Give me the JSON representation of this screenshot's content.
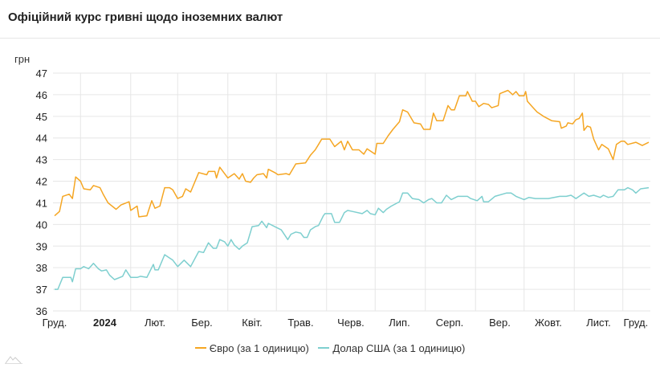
{
  "header": {
    "title": "Офіційний курс гривні щодо іноземних валют"
  },
  "chart_data": {
    "type": "line",
    "title": "Офіційний курс гривні щодо іноземних валют",
    "ylabel": "грн",
    "xlabel": "",
    "x_units": "days since 2023-12-01",
    "xlim": [
      14,
      383
    ],
    "ylim": [
      36,
      47
    ],
    "yticks": [
      36,
      37,
      38,
      39,
      40,
      41,
      42,
      43,
      44,
      45,
      46,
      47
    ],
    "grid": true,
    "legend": "bottom",
    "month_gridlines": [
      31,
      62,
      91,
      122,
      152,
      183,
      213,
      244,
      275,
      305,
      336,
      366
    ],
    "xtick_labels": [
      {
        "d": 15,
        "label": "Груд."
      },
      {
        "d": 46,
        "label": "2024",
        "bold": true
      },
      {
        "d": 77,
        "label": "Лют."
      },
      {
        "d": 106,
        "label": "Бер."
      },
      {
        "d": 137,
        "label": "Квіт."
      },
      {
        "d": 167,
        "label": "Трав."
      },
      {
        "d": 198,
        "label": "Черв."
      },
      {
        "d": 228,
        "label": "Лип."
      },
      {
        "d": 259,
        "label": "Серп."
      },
      {
        "d": 290,
        "label": "Вер."
      },
      {
        "d": 320,
        "label": "Жовт."
      },
      {
        "d": 351,
        "label": "Лист."
      },
      {
        "d": 374,
        "label": "Груд."
      }
    ],
    "series": [
      {
        "name": "Євро (за 1 одиницю)",
        "color": "#f5a623",
        "points": [
          [
            15,
            40.4
          ],
          [
            18,
            40.6
          ],
          [
            20,
            41.3
          ],
          [
            24,
            41.4
          ],
          [
            26,
            41.2
          ],
          [
            28,
            42.2
          ],
          [
            31,
            42.0
          ],
          [
            33,
            41.65
          ],
          [
            37,
            41.6
          ],
          [
            39,
            41.8
          ],
          [
            43,
            41.7
          ],
          [
            45,
            41.4
          ],
          [
            48,
            41.0
          ],
          [
            53,
            40.7
          ],
          [
            56,
            40.9
          ],
          [
            61,
            41.05
          ],
          [
            62,
            40.65
          ],
          [
            66,
            40.85
          ],
          [
            67,
            40.35
          ],
          [
            72,
            40.4
          ],
          [
            75,
            41.1
          ],
          [
            77,
            40.75
          ],
          [
            80,
            40.85
          ],
          [
            83,
            41.7
          ],
          [
            86,
            41.7
          ],
          [
            88,
            41.6
          ],
          [
            91,
            41.2
          ],
          [
            94,
            41.3
          ],
          [
            96,
            41.65
          ],
          [
            99,
            41.5
          ],
          [
            104,
            42.4
          ],
          [
            109,
            42.3
          ],
          [
            110,
            42.45
          ],
          [
            114,
            42.45
          ],
          [
            115,
            42.15
          ],
          [
            117,
            42.65
          ],
          [
            120,
            42.35
          ],
          [
            122,
            42.15
          ],
          [
            126,
            42.35
          ],
          [
            129,
            42.1
          ],
          [
            131,
            42.35
          ],
          [
            133,
            42.0
          ],
          [
            136,
            41.95
          ],
          [
            138,
            42.15
          ],
          [
            140,
            42.3
          ],
          [
            144,
            42.35
          ],
          [
            146,
            42.15
          ],
          [
            147,
            42.55
          ],
          [
            151,
            42.4
          ],
          [
            153,
            42.3
          ],
          [
            158,
            42.35
          ],
          [
            160,
            42.3
          ],
          [
            164,
            42.8
          ],
          [
            170,
            42.85
          ],
          [
            173,
            43.2
          ],
          [
            176,
            43.45
          ],
          [
            178,
            43.7
          ],
          [
            180,
            43.95
          ],
          [
            185,
            43.95
          ],
          [
            188,
            43.6
          ],
          [
            192,
            43.85
          ],
          [
            194,
            43.45
          ],
          [
            196,
            43.85
          ],
          [
            199,
            43.45
          ],
          [
            203,
            43.45
          ],
          [
            206,
            43.25
          ],
          [
            208,
            43.5
          ],
          [
            213,
            43.25
          ],
          [
            214,
            43.75
          ],
          [
            218,
            43.75
          ],
          [
            221,
            44.1
          ],
          [
            224,
            44.4
          ],
          [
            228,
            44.75
          ],
          [
            230,
            45.3
          ],
          [
            233,
            45.2
          ],
          [
            237,
            44.7
          ],
          [
            241,
            44.65
          ],
          [
            243,
            44.4
          ],
          [
            247,
            44.4
          ],
          [
            249,
            45.15
          ],
          [
            251,
            44.8
          ],
          [
            255,
            44.8
          ],
          [
            258,
            45.5
          ],
          [
            260,
            45.3
          ],
          [
            262,
            45.3
          ],
          [
            265,
            45.95
          ],
          [
            269,
            45.95
          ],
          [
            270,
            46.15
          ],
          [
            273,
            45.7
          ],
          [
            275,
            45.7
          ],
          [
            277,
            45.45
          ],
          [
            280,
            45.6
          ],
          [
            283,
            45.55
          ],
          [
            285,
            45.4
          ],
          [
            289,
            45.5
          ],
          [
            290,
            46.05
          ],
          [
            295,
            46.2
          ],
          [
            298,
            46.0
          ],
          [
            300,
            46.15
          ],
          [
            302,
            45.95
          ],
          [
            305,
            45.95
          ],
          [
            306,
            46.15
          ],
          [
            307,
            45.7
          ],
          [
            310,
            45.45
          ],
          [
            313,
            45.2
          ],
          [
            317,
            45.0
          ],
          [
            322,
            44.8
          ],
          [
            327,
            44.75
          ],
          [
            328,
            44.45
          ],
          [
            331,
            44.55
          ],
          [
            332,
            44.7
          ],
          [
            335,
            44.65
          ],
          [
            337,
            44.85
          ],
          [
            339,
            44.9
          ],
          [
            341,
            45.15
          ],
          [
            342,
            44.35
          ],
          [
            344,
            44.55
          ],
          [
            346,
            44.5
          ],
          [
            348,
            43.95
          ],
          [
            351,
            43.45
          ],
          [
            353,
            43.7
          ],
          [
            357,
            43.5
          ],
          [
            360,
            43.0
          ],
          [
            362,
            43.7
          ],
          [
            365,
            43.85
          ],
          [
            367,
            43.85
          ],
          [
            369,
            43.7
          ],
          [
            374,
            43.8
          ],
          [
            378,
            43.65
          ],
          [
            382,
            43.8
          ]
        ]
      },
      {
        "name": "Долар США (за 1 одиницю)",
        "color": "#7ecfcf",
        "points": [
          [
            15,
            37.0
          ],
          [
            17,
            37.0
          ],
          [
            20,
            37.55
          ],
          [
            25,
            37.55
          ],
          [
            26,
            37.35
          ],
          [
            28,
            37.95
          ],
          [
            31,
            37.95
          ],
          [
            33,
            38.05
          ],
          [
            36,
            37.95
          ],
          [
            39,
            38.2
          ],
          [
            42,
            37.95
          ],
          [
            44,
            37.85
          ],
          [
            47,
            37.9
          ],
          [
            49,
            37.65
          ],
          [
            52,
            37.45
          ],
          [
            57,
            37.6
          ],
          [
            59,
            37.9
          ],
          [
            62,
            37.55
          ],
          [
            66,
            37.55
          ],
          [
            68,
            37.6
          ],
          [
            72,
            37.55
          ],
          [
            76,
            38.15
          ],
          [
            77,
            37.9
          ],
          [
            79,
            37.9
          ],
          [
            83,
            38.6
          ],
          [
            86,
            38.45
          ],
          [
            88,
            38.35
          ],
          [
            91,
            38.05
          ],
          [
            95,
            38.35
          ],
          [
            99,
            38.05
          ],
          [
            104,
            38.75
          ],
          [
            107,
            38.7
          ],
          [
            110,
            39.15
          ],
          [
            113,
            38.9
          ],
          [
            115,
            38.9
          ],
          [
            117,
            39.3
          ],
          [
            120,
            39.2
          ],
          [
            122,
            39.0
          ],
          [
            124,
            39.3
          ],
          [
            126,
            39.05
          ],
          [
            129,
            38.85
          ],
          [
            131,
            39.0
          ],
          [
            134,
            39.15
          ],
          [
            137,
            39.9
          ],
          [
            141,
            39.95
          ],
          [
            143,
            40.15
          ],
          [
            146,
            39.85
          ],
          [
            147,
            40.05
          ],
          [
            151,
            39.9
          ],
          [
            155,
            39.75
          ],
          [
            159,
            39.3
          ],
          [
            161,
            39.55
          ],
          [
            164,
            39.65
          ],
          [
            167,
            39.6
          ],
          [
            169,
            39.4
          ],
          [
            171,
            39.4
          ],
          [
            173,
            39.75
          ],
          [
            176,
            39.9
          ],
          [
            178,
            39.95
          ],
          [
            181,
            40.4
          ],
          [
            182,
            40.5
          ],
          [
            186,
            40.5
          ],
          [
            188,
            40.1
          ],
          [
            191,
            40.1
          ],
          [
            194,
            40.55
          ],
          [
            196,
            40.65
          ],
          [
            199,
            40.6
          ],
          [
            205,
            40.5
          ],
          [
            208,
            40.65
          ],
          [
            210,
            40.5
          ],
          [
            213,
            40.45
          ],
          [
            215,
            40.75
          ],
          [
            218,
            40.55
          ],
          [
            220,
            40.7
          ],
          [
            223,
            40.85
          ],
          [
            228,
            41.05
          ],
          [
            230,
            41.45
          ],
          [
            233,
            41.45
          ],
          [
            236,
            41.2
          ],
          [
            240,
            41.15
          ],
          [
            243,
            41.0
          ],
          [
            246,
            41.15
          ],
          [
            248,
            41.2
          ],
          [
            251,
            41.0
          ],
          [
            254,
            41.0
          ],
          [
            257,
            41.35
          ],
          [
            260,
            41.15
          ],
          [
            264,
            41.3
          ],
          [
            270,
            41.3
          ],
          [
            272,
            41.2
          ],
          [
            276,
            41.1
          ],
          [
            279,
            41.3
          ],
          [
            280,
            41.05
          ],
          [
            283,
            41.05
          ],
          [
            287,
            41.3
          ],
          [
            294,
            41.45
          ],
          [
            297,
            41.45
          ],
          [
            300,
            41.3
          ],
          [
            305,
            41.15
          ],
          [
            308,
            41.25
          ],
          [
            312,
            41.2
          ],
          [
            320,
            41.2
          ],
          [
            327,
            41.3
          ],
          [
            331,
            41.3
          ],
          [
            334,
            41.35
          ],
          [
            337,
            41.2
          ],
          [
            342,
            41.45
          ],
          [
            345,
            41.3
          ],
          [
            348,
            41.35
          ],
          [
            352,
            41.25
          ],
          [
            354,
            41.35
          ],
          [
            357,
            41.25
          ],
          [
            360,
            41.3
          ],
          [
            363,
            41.6
          ],
          [
            367,
            41.6
          ],
          [
            369,
            41.7
          ],
          [
            372,
            41.6
          ],
          [
            374,
            41.45
          ],
          [
            377,
            41.65
          ],
          [
            382,
            41.7
          ]
        ]
      }
    ]
  }
}
